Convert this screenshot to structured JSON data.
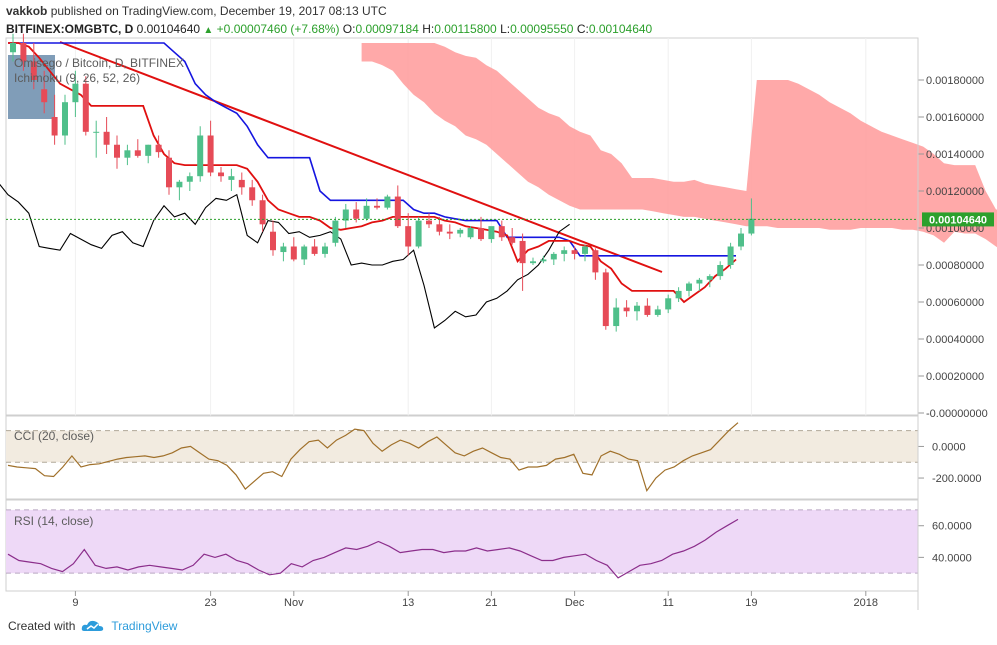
{
  "header": {
    "author": "vakkob",
    "published_text": "published on TradingView.com, December 19, 2017 08:13 UTC"
  },
  "ohlc": {
    "symbol": "BITFINEX:OMGBTC, D",
    "close_value": "0.00104640",
    "change": "+0.00007460 (+7.68%)",
    "o_label": "O:",
    "o": "0.00097184",
    "h_label": "H:",
    "h": "0.00115800",
    "l_label": "L:",
    "l": "0.00095550",
    "c_label": "C:",
    "c": "0.00104640"
  },
  "footer": {
    "created_with": "Created with",
    "brand": "TradingView"
  },
  "colors": {
    "up": "#4fbf8a",
    "down": "#e64b57",
    "tenkan": "#e01010",
    "kijun": "#1515e0",
    "chikou": "#000000",
    "cloud": "#ff9a9a",
    "cci_line": "#a0702a",
    "cci_band": "#f2ebe0",
    "rsi_line": "#8b2e8b",
    "rsi_band": "#eed9f7",
    "trendline": "#e01010",
    "last_price_label_bg": "#2ca02c"
  },
  "chart_data": [
    {
      "type": "candlestick",
      "title": "Omisego / Bitcoin, D, BITFINEX",
      "indicator_label": "Ichimoku (9, 26, 52, 26)",
      "x_tick_labels": [
        "9",
        "23",
        "Nov",
        "13",
        "21",
        "Dec",
        "11",
        "19",
        "2018"
      ],
      "y_tick_labels": [
        "0.00180000",
        "0.00160000",
        "0.00140000",
        "0.00120000",
        "0.00100000",
        "0.00080000",
        "0.00060000",
        "0.00040000",
        "0.00020000",
        "-0.00000000"
      ],
      "ylim": [
        0.0,
        0.002
      ],
      "last_price_label": "0.00104640",
      "last_price": 0.0010464,
      "candles": [
        [
          0.00195,
          0.00205,
          0.0019,
          0.002
        ],
        [
          0.002,
          0.00205,
          0.00185,
          0.0019
        ],
        [
          0.0019,
          0.002,
          0.00175,
          0.0018
        ],
        [
          0.00175,
          0.00185,
          0.00162,
          0.00168
        ],
        [
          0.0016,
          0.00172,
          0.00145,
          0.0015
        ],
        [
          0.0015,
          0.00172,
          0.00145,
          0.00168
        ],
        [
          0.00168,
          0.00185,
          0.0016,
          0.00178
        ],
        [
          0.00178,
          0.00182,
          0.0015,
          0.00152
        ],
        [
          0.00152,
          0.00158,
          0.00138,
          0.00152
        ],
        [
          0.00152,
          0.0016,
          0.0014,
          0.00145
        ],
        [
          0.00145,
          0.0015,
          0.00132,
          0.00138
        ],
        [
          0.00138,
          0.00145,
          0.00134,
          0.00142
        ],
        [
          0.00142,
          0.00148,
          0.00138,
          0.00139
        ],
        [
          0.00139,
          0.00145,
          0.00135,
          0.00145
        ],
        [
          0.00145,
          0.0015,
          0.00138,
          0.00141
        ],
        [
          0.00138,
          0.00142,
          0.00118,
          0.00122
        ],
        [
          0.00122,
          0.00126,
          0.00115,
          0.00125
        ],
        [
          0.00125,
          0.0013,
          0.0012,
          0.00128
        ],
        [
          0.00128,
          0.00155,
          0.00125,
          0.0015
        ],
        [
          0.0015,
          0.00158,
          0.00128,
          0.0013
        ],
        [
          0.0013,
          0.00133,
          0.00125,
          0.00128
        ],
        [
          0.00126,
          0.00132,
          0.0012,
          0.00128
        ],
        [
          0.00126,
          0.0013,
          0.00118,
          0.00122
        ],
        [
          0.00122,
          0.00126,
          0.00112,
          0.00115
        ],
        [
          0.00115,
          0.00118,
          0.00098,
          0.00102
        ],
        [
          0.00098,
          0.00104,
          0.00085,
          0.00088
        ],
        [
          0.00087,
          0.00092,
          0.00082,
          0.0009
        ],
        [
          0.0009,
          0.00095,
          0.00082,
          0.00083
        ],
        [
          0.00083,
          0.00091,
          0.0008,
          0.0009
        ],
        [
          0.0009,
          0.00094,
          0.00085,
          0.00086
        ],
        [
          0.00086,
          0.00092,
          0.00084,
          0.0009
        ],
        [
          0.00092,
          0.00106,
          0.0009,
          0.00104
        ],
        [
          0.00104,
          0.00113,
          0.001,
          0.0011
        ],
        [
          0.0011,
          0.00114,
          0.00103,
          0.00105
        ],
        [
          0.00105,
          0.00116,
          0.00104,
          0.00112
        ],
        [
          0.00112,
          0.00116,
          0.0011,
          0.00111
        ],
        [
          0.00111,
          0.00118,
          0.0011,
          0.00117
        ],
        [
          0.00117,
          0.00123,
          0.001,
          0.00101
        ],
        [
          0.00101,
          0.00108,
          0.00085,
          0.0009
        ],
        [
          0.0009,
          0.00106,
          0.00089,
          0.00104
        ],
        [
          0.00104,
          0.00108,
          0.001,
          0.00102
        ],
        [
          0.00102,
          0.00106,
          0.00096,
          0.00098
        ],
        [
          0.00098,
          0.00102,
          0.00094,
          0.00097
        ],
        [
          0.00097,
          0.001,
          0.00095,
          0.00099
        ],
        [
          0.00095,
          0.00101,
          0.00094,
          0.001
        ],
        [
          0.001,
          0.00106,
          0.00093,
          0.00094
        ],
        [
          0.00094,
          0.001,
          0.00092,
          0.00101
        ],
        [
          0.00101,
          0.00104,
          0.00093,
          0.00095
        ],
        [
          0.00095,
          0.001,
          0.00091,
          0.00092
        ],
        [
          0.00093,
          0.00097,
          0.00066,
          0.00081
        ],
        [
          0.00081,
          0.00084,
          0.0008,
          0.00082
        ],
        [
          0.00082,
          0.00085,
          0.00081,
          0.00083
        ],
        [
          0.00083,
          0.00087,
          0.0008,
          0.00086
        ],
        [
          0.00086,
          0.0009,
          0.00082,
          0.00088
        ],
        [
          0.00088,
          0.0009,
          0.00083,
          0.00086
        ],
        [
          0.00086,
          0.00091,
          0.00082,
          0.0009
        ],
        [
          0.00088,
          0.00089,
          0.00072,
          0.00076
        ],
        [
          0.00076,
          0.00078,
          0.00045,
          0.00047
        ],
        [
          0.00047,
          0.00062,
          0.00044,
          0.00057
        ],
        [
          0.00057,
          0.00061,
          0.00052,
          0.00055
        ],
        [
          0.00055,
          0.0006,
          0.0005,
          0.00058
        ],
        [
          0.00058,
          0.00062,
          0.00052,
          0.00053
        ],
        [
          0.00053,
          0.00058,
          0.00052,
          0.00056
        ],
        [
          0.00056,
          0.00064,
          0.00054,
          0.00062
        ],
        [
          0.00062,
          0.00068,
          0.0006,
          0.00066
        ],
        [
          0.00066,
          0.00071,
          0.00063,
          0.0007
        ],
        [
          0.0007,
          0.00073,
          0.00066,
          0.00072
        ],
        [
          0.00072,
          0.00075,
          0.00068,
          0.00074
        ],
        [
          0.00074,
          0.00082,
          0.00072,
          0.0008
        ],
        [
          0.0008,
          0.00092,
          0.00078,
          0.0009
        ],
        [
          0.0009,
          0.001,
          0.00088,
          0.00097
        ],
        [
          0.00097,
          0.00116,
          0.00096,
          0.00105
        ]
      ],
      "tenkan_sen": [
        0.002,
        0.002,
        0.00198,
        0.00192,
        0.00185,
        0.00178,
        0.00175,
        0.00172,
        0.00166,
        0.00166,
        0.00166,
        0.00166,
        0.00166,
        0.00166,
        0.0015,
        0.0014,
        0.00135,
        0.00134,
        0.00134,
        0.00134,
        0.00134,
        0.00134,
        0.00134,
        0.00132,
        0.00125,
        0.00115,
        0.0011,
        0.00108,
        0.00106,
        0.00106,
        0.00104,
        0.001,
        0.00099,
        0.001,
        0.00101,
        0.00103,
        0.00104,
        0.00106,
        0.00106,
        0.00106,
        0.00106,
        0.00106,
        0.00104,
        0.00103,
        0.00101,
        0.001,
        0.00099,
        0.00098,
        0.00096,
        0.00082,
        0.00088,
        0.0009,
        0.00093,
        0.00093,
        0.00093,
        0.00091,
        0.0009,
        0.00082,
        0.00078,
        0.0007,
        0.00066,
        0.00066,
        0.00066,
        0.00066,
        0.00066,
        0.0006,
        0.00064,
        0.00068,
        0.00074,
        0.00078,
        0.00083
      ],
      "kijun_sen": [
        0.002,
        0.002,
        0.002,
        0.002,
        0.002,
        0.002,
        0.002,
        0.002,
        0.002,
        0.002,
        0.002,
        0.002,
        0.002,
        0.002,
        0.002,
        0.002,
        0.00195,
        0.0019,
        0.00178,
        0.00172,
        0.00168,
        0.00165,
        0.00162,
        0.00155,
        0.00145,
        0.00138,
        0.00138,
        0.00138,
        0.00138,
        0.00138,
        0.0012,
        0.00115,
        0.00115,
        0.00115,
        0.00115,
        0.00115,
        0.00115,
        0.00115,
        0.00115,
        0.0011,
        0.00108,
        0.00108,
        0.00106,
        0.00105,
        0.00104,
        0.00104,
        0.00104,
        0.00104,
        0.00095,
        0.00095,
        0.00095,
        0.00095,
        0.00095,
        0.00095,
        0.00093,
        0.00085,
        0.00085,
        0.00085,
        0.00085,
        0.00085,
        0.00085,
        0.00085,
        0.00085,
        0.00085,
        0.00085,
        0.00085,
        0.00085,
        0.00085,
        0.00085,
        0.00085,
        0.00085
      ],
      "chikou_span": [
        0.00125,
        0.00118,
        0.00114,
        0.00108,
        0.0009,
        0.00089,
        0.00088,
        0.00097,
        0.00094,
        0.00091,
        0.00089,
        0.00096,
        0.00098,
        0.00092,
        0.0009,
        0.00104,
        0.00112,
        0.00106,
        0.00108,
        0.00102,
        0.00111,
        0.00116,
        0.00115,
        0.00118,
        0.00096,
        0.00092,
        0.00104,
        0.00103,
        0.00097,
        0.00098,
        0.00095,
        0.00096,
        0.00098,
        0.00094,
        0.0008,
        0.00081,
        0.0008,
        0.0008,
        0.00082,
        0.00083,
        0.00088,
        0.00069,
        0.00046,
        0.0005,
        0.00055,
        0.00052,
        0.00053,
        0.0006,
        0.00062,
        0.00066,
        0.00072,
        0.00075,
        0.0008,
        0.00088,
        0.00098,
        0.00102
      ],
      "cloud_upper": [
        0.002,
        0.002,
        0.002,
        0.002,
        0.002,
        0.002,
        0.002,
        0.002,
        0.00198,
        0.00195,
        0.00193,
        0.00192,
        0.00188,
        0.00185,
        0.0018,
        0.00175,
        0.0017,
        0.00165,
        0.00162,
        0.0016,
        0.00155,
        0.00152,
        0.0015,
        0.00142,
        0.0014,
        0.00135,
        0.00127,
        0.00127,
        0.00127,
        0.00126,
        0.00125,
        0.00125,
        0.00126,
        0.00124,
        0.00123,
        0.00122,
        0.00121,
        0.0012,
        0.0018,
        0.0018,
        0.0018,
        0.0018,
        0.00178,
        0.00175,
        0.00172,
        0.00168,
        0.00165,
        0.00162,
        0.00158,
        0.00155,
        0.00152,
        0.0015,
        0.00148,
        0.00146,
        0.00144,
        0.0014,
        0.00135,
        0.00134,
        0.00134,
        0.00134,
        0.0012,
        0.0011,
        0.0011,
        0.00108,
        0.00106,
        0.001,
        0.001,
        0.001,
        0.00099,
        0.00099
      ],
      "cloud_lower": [
        0.0019,
        0.0019,
        0.00188,
        0.00185,
        0.00178,
        0.00172,
        0.00168,
        0.00162,
        0.00158,
        0.00155,
        0.0015,
        0.00148,
        0.00145,
        0.0014,
        0.00135,
        0.0013,
        0.00125,
        0.00122,
        0.00118,
        0.00115,
        0.00112,
        0.0011,
        0.0011,
        0.0011,
        0.0011,
        0.0011,
        0.0011,
        0.0011,
        0.00109,
        0.00108,
        0.00107,
        0.00106,
        0.00106,
        0.00105,
        0.00104,
        0.00103,
        0.00102,
        0.00101,
        0.00101,
        0.00101,
        0.001,
        0.001,
        0.001,
        0.001,
        0.001,
        0.00099,
        0.00099,
        0.00099,
        0.001,
        0.001,
        0.001,
        0.001,
        0.00099,
        0.00099,
        0.00098,
        0.00096,
        0.00092,
        0.00098,
        0.00097,
        0.00097,
        0.00094,
        0.0009,
        0.00086,
        0.00082,
        0.00078,
        0.00078,
        0.00078,
        0.00078,
        0.00078,
        0.00078
      ]
    },
    {
      "type": "line",
      "title": "CCI (20, close)",
      "y_tick_labels": [
        "0.0000",
        "-200.0000"
      ],
      "band": [
        -100,
        100
      ],
      "ylim": [
        -320,
        180
      ],
      "values": [
        -120,
        -130,
        -135,
        -140,
        -185,
        -190,
        -130,
        -60,
        -130,
        -115,
        -110,
        -95,
        -80,
        -70,
        -65,
        -60,
        -70,
        -60,
        -40,
        -10,
        0,
        -40,
        -80,
        -90,
        -120,
        -180,
        -270,
        -220,
        -170,
        -160,
        -190,
        -80,
        -20,
        30,
        40,
        -10,
        40,
        70,
        110,
        100,
        20,
        -30,
        10,
        40,
        20,
        -10,
        30,
        60,
        10,
        -40,
        -60,
        -30,
        -10,
        -40,
        -70,
        -80,
        -150,
        -130,
        -130,
        -120,
        -80,
        -70,
        -50,
        -170,
        -180,
        -60,
        -30,
        -50,
        -80,
        -90,
        -280,
        -200,
        -150,
        -130,
        -90,
        -60,
        -40,
        -20,
        40,
        100,
        150
      ],
      "series": [
        {
          "name": "CCI (20, close)"
        }
      ]
    },
    {
      "type": "line",
      "title": "RSI (14, close)",
      "y_tick_labels": [
        "60.0000",
        "40.0000"
      ],
      "band": [
        30,
        70
      ],
      "ylim": [
        20,
        75
      ],
      "values": [
        42,
        38,
        37,
        36,
        33,
        31,
        36,
        45,
        35,
        33,
        34,
        32,
        34,
        35,
        34,
        33,
        32,
        35,
        42,
        40,
        42,
        38,
        36,
        32,
        29,
        30,
        36,
        34,
        38,
        40,
        43,
        46,
        45,
        47,
        50,
        47,
        43,
        44,
        45,
        45,
        43,
        44,
        44,
        46,
        44,
        45,
        46,
        44,
        41,
        38,
        38,
        40,
        41,
        42,
        38,
        35,
        27,
        31,
        35,
        36,
        38,
        42,
        44,
        47,
        51,
        56,
        60,
        64
      ],
      "series": [
        {
          "name": "RSI (14, close)"
        }
      ]
    }
  ]
}
